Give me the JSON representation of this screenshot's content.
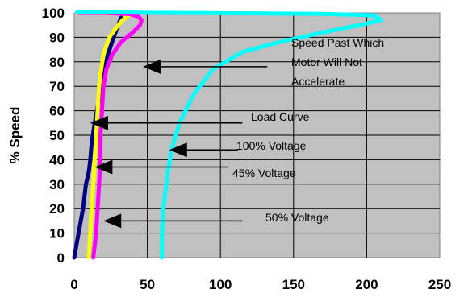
{
  "chart_data": {
    "type": "line",
    "title": "",
    "xlabel": "",
    "ylabel": "% Speed",
    "xlim": [
      0,
      250
    ],
    "ylim": [
      0,
      100
    ],
    "x_ticks": [
      0,
      50,
      100,
      150,
      200,
      250
    ],
    "y_ticks": [
      0,
      10,
      20,
      30,
      40,
      50,
      60,
      70,
      80,
      90,
      100
    ],
    "grid": true,
    "plot_background": "#c0c0c0",
    "series": [
      {
        "name": "Load Curve",
        "color": "#000080",
        "points": [
          [
            0,
            0
          ],
          [
            3,
            10
          ],
          [
            6,
            20
          ],
          [
            8,
            30
          ],
          [
            10,
            35
          ],
          [
            11,
            40
          ],
          [
            12,
            47
          ],
          [
            14,
            55
          ],
          [
            17,
            65
          ],
          [
            20,
            75
          ],
          [
            23,
            83
          ],
          [
            27,
            90
          ],
          [
            30,
            95
          ],
          [
            32,
            98
          ]
        ]
      },
      {
        "name": "45% Voltage",
        "color": "#ffff00",
        "points": [
          [
            10,
            0
          ],
          [
            11,
            10
          ],
          [
            12,
            20
          ],
          [
            13,
            30
          ],
          [
            14,
            40
          ],
          [
            15,
            50
          ],
          [
            16,
            60
          ],
          [
            17,
            70
          ],
          [
            18,
            75
          ],
          [
            20,
            83
          ],
          [
            24,
            90
          ],
          [
            30,
            95
          ],
          [
            33,
            97
          ],
          [
            36,
            98.5
          ],
          [
            38,
            99.5
          ],
          [
            30,
            99.8
          ],
          [
            15,
            100
          ],
          [
            2,
            100
          ]
        ]
      },
      {
        "name": "50% Voltage",
        "color": "#ff00ff",
        "points": [
          [
            13,
            0
          ],
          [
            15,
            10
          ],
          [
            16,
            20
          ],
          [
            17,
            30
          ],
          [
            18,
            40
          ],
          [
            18,
            50
          ],
          [
            19,
            60
          ],
          [
            20,
            70
          ],
          [
            22,
            77
          ],
          [
            26,
            83
          ],
          [
            32,
            88
          ],
          [
            40,
            92
          ],
          [
            45,
            95
          ],
          [
            46,
            97
          ],
          [
            44,
            98.5
          ],
          [
            38,
            99.5
          ],
          [
            20,
            100
          ],
          [
            3,
            100
          ]
        ]
      },
      {
        "name": "100% Voltage",
        "color": "#00ffff",
        "points": [
          [
            60,
            0
          ],
          [
            60,
            10
          ],
          [
            61,
            20
          ],
          [
            62,
            25
          ],
          [
            64,
            35
          ],
          [
            67,
            45
          ],
          [
            72,
            55
          ],
          [
            82,
            67
          ],
          [
            95,
            77
          ],
          [
            115,
            84
          ],
          [
            140,
            88
          ],
          [
            170,
            92
          ],
          [
            195,
            95
          ],
          [
            210,
            97
          ],
          [
            205,
            99
          ],
          [
            170,
            99.6
          ],
          [
            120,
            99.8
          ],
          [
            60,
            100
          ],
          [
            2,
            100.3
          ]
        ]
      }
    ],
    "annotations": [
      {
        "text": "Speed Past Which",
        "tip": [
          47,
          78
        ],
        "tail": [
          132,
          78
        ]
      },
      {
        "text": "Motor Will Not"
      },
      {
        "text": "Accelerate"
      },
      {
        "text": "Load Curve",
        "tip": [
          11,
          55
        ],
        "tail": [
          115,
          55
        ]
      },
      {
        "text": "100% Voltage",
        "tip": [
          65,
          44
        ],
        "tail": [
          112,
          44
        ]
      },
      {
        "text": "45% Voltage",
        "tip": [
          14,
          37
        ],
        "tail": [
          105,
          37
        ]
      },
      {
        "text": "50% Voltage",
        "tip": [
          20,
          15
        ],
        "tail": [
          115,
          15
        ]
      }
    ]
  }
}
